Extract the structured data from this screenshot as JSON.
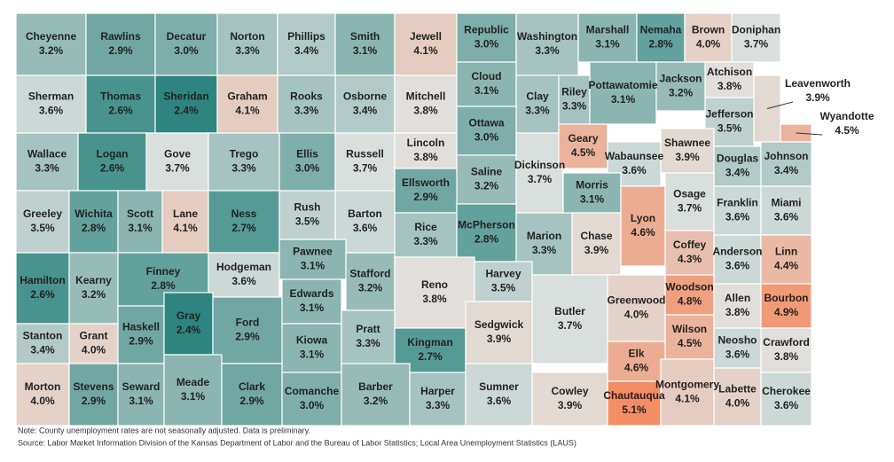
{
  "counties": [
    {
      "name": "Cheyenne",
      "value": 3.2,
      "label": "3.2%"
    },
    {
      "name": "Rawlins",
      "value": 2.9,
      "label": "2.9%"
    },
    {
      "name": "Decatur",
      "value": 3.0,
      "label": "3.0%"
    },
    {
      "name": "Norton",
      "value": 3.3,
      "label": "3.3%"
    },
    {
      "name": "Phillips",
      "value": 3.4,
      "label": "3.4%"
    },
    {
      "name": "Smith",
      "value": 3.1,
      "label": "3.1%"
    },
    {
      "name": "Jewell",
      "value": 4.1,
      "label": "4.1%"
    },
    {
      "name": "Republic",
      "value": 3.0,
      "label": "3.0%"
    },
    {
      "name": "Washington",
      "value": 3.3,
      "label": "3.3%"
    },
    {
      "name": "Marshall",
      "value": 3.1,
      "label": "3.1%"
    },
    {
      "name": "Nemaha",
      "value": 2.8,
      "label": "2.8%"
    },
    {
      "name": "Brown",
      "value": 4.0,
      "label": "4.0%"
    },
    {
      "name": "Doniphan",
      "value": 3.7,
      "label": "3.7%"
    },
    {
      "name": "Sherman",
      "value": 3.6,
      "label": "3.6%"
    },
    {
      "name": "Thomas",
      "value": 2.6,
      "label": "2.6%"
    },
    {
      "name": "Sheridan",
      "value": 2.4,
      "label": "2.4%"
    },
    {
      "name": "Graham",
      "value": 4.1,
      "label": "4.1%"
    },
    {
      "name": "Rooks",
      "value": 3.3,
      "label": "3.3%"
    },
    {
      "name": "Osborne",
      "value": 3.4,
      "label": "3.4%"
    },
    {
      "name": "Mitchell",
      "value": 3.8,
      "label": "3.8%"
    },
    {
      "name": "Cloud",
      "value": 3.1,
      "label": "3.1%"
    },
    {
      "name": "Clay",
      "value": 3.3,
      "label": "3.3%"
    },
    {
      "name": "Riley",
      "value": 3.3,
      "label": "3.3%"
    },
    {
      "name": "Pottawatomie",
      "value": 3.1,
      "label": "3.1%"
    },
    {
      "name": "Jackson",
      "value": 3.2,
      "label": "3.2%"
    },
    {
      "name": "Atchison",
      "value": 3.8,
      "label": "3.8%"
    },
    {
      "name": "Jefferson",
      "value": 3.5,
      "label": "3.5%"
    },
    {
      "name": "Leavenworth",
      "value": 3.9,
      "label": "3.9%"
    },
    {
      "name": "Wyandotte",
      "value": 4.5,
      "label": "4.5%"
    },
    {
      "name": "Wallace",
      "value": 3.3,
      "label": "3.3%"
    },
    {
      "name": "Logan",
      "value": 2.6,
      "label": "2.6%"
    },
    {
      "name": "Gove",
      "value": 3.7,
      "label": "3.7%"
    },
    {
      "name": "Trego",
      "value": 3.3,
      "label": "3.3%"
    },
    {
      "name": "Ellis",
      "value": 3.0,
      "label": "3.0%"
    },
    {
      "name": "Russell",
      "value": 3.7,
      "label": "3.7%"
    },
    {
      "name": "Lincoln",
      "value": 3.8,
      "label": "3.8%"
    },
    {
      "name": "Ottawa",
      "value": 3.0,
      "label": "3.0%"
    },
    {
      "name": "Saline",
      "value": 3.2,
      "label": "3.2%"
    },
    {
      "name": "Dickinson",
      "value": 3.7,
      "label": "3.7%"
    },
    {
      "name": "Geary",
      "value": 4.5,
      "label": "4.5%"
    },
    {
      "name": "Wabaunsee",
      "value": 3.6,
      "label": "3.6%"
    },
    {
      "name": "Shawnee",
      "value": 3.9,
      "label": "3.9%"
    },
    {
      "name": "Douglas",
      "value": 3.4,
      "label": "3.4%"
    },
    {
      "name": "Johnson",
      "value": 3.4,
      "label": "3.4%"
    },
    {
      "name": "Greeley",
      "value": 3.5,
      "label": "3.5%"
    },
    {
      "name": "Wichita",
      "value": 2.8,
      "label": "2.8%"
    },
    {
      "name": "Scott",
      "value": 3.1,
      "label": "3.1%"
    },
    {
      "name": "Lane",
      "value": 4.1,
      "label": "4.1%"
    },
    {
      "name": "Ness",
      "value": 2.7,
      "label": "2.7%"
    },
    {
      "name": "Rush",
      "value": 3.5,
      "label": "3.5%"
    },
    {
      "name": "Barton",
      "value": 3.6,
      "label": "3.6%"
    },
    {
      "name": "Ellsworth",
      "value": 2.9,
      "label": "2.9%"
    },
    {
      "name": "Rice",
      "value": 3.3,
      "label": "3.3%"
    },
    {
      "name": "McPherson",
      "value": 2.8,
      "label": "2.8%"
    },
    {
      "name": "Marion",
      "value": 3.3,
      "label": "3.3%"
    },
    {
      "name": "Morris",
      "value": 3.1,
      "label": "3.1%"
    },
    {
      "name": "Chase",
      "value": 3.9,
      "label": "3.9%"
    },
    {
      "name": "Lyon",
      "value": 4.6,
      "label": "4.6%"
    },
    {
      "name": "Osage",
      "value": 3.7,
      "label": "3.7%"
    },
    {
      "name": "Franklin",
      "value": 3.6,
      "label": "3.6%"
    },
    {
      "name": "Miami",
      "value": 3.6,
      "label": "3.6%"
    },
    {
      "name": "Hamilton",
      "value": 2.6,
      "label": "2.6%"
    },
    {
      "name": "Kearny",
      "value": 3.2,
      "label": "3.2%"
    },
    {
      "name": "Finney",
      "value": 2.8,
      "label": "2.8%"
    },
    {
      "name": "Hodgeman",
      "value": 3.6,
      "label": "3.6%"
    },
    {
      "name": "Pawnee",
      "value": 3.1,
      "label": "3.1%"
    },
    {
      "name": "Stafford",
      "value": 3.2,
      "label": "3.2%"
    },
    {
      "name": "Reno",
      "value": 3.8,
      "label": "3.8%"
    },
    {
      "name": "Harvey",
      "value": 3.5,
      "label": "3.5%"
    },
    {
      "name": "Butler",
      "value": 3.7,
      "label": "3.7%"
    },
    {
      "name": "Coffey",
      "value": 4.3,
      "label": "4.3%"
    },
    {
      "name": "Anderson",
      "value": 3.6,
      "label": "3.6%"
    },
    {
      "name": "Linn",
      "value": 4.4,
      "label": "4.4%"
    },
    {
      "name": "Stanton",
      "value": 3.4,
      "label": "3.4%"
    },
    {
      "name": "Grant",
      "value": 4.0,
      "label": "4.0%"
    },
    {
      "name": "Haskell",
      "value": 2.9,
      "label": "2.9%"
    },
    {
      "name": "Gray",
      "value": 2.4,
      "label": "2.4%"
    },
    {
      "name": "Ford",
      "value": 2.9,
      "label": "2.9%"
    },
    {
      "name": "Edwards",
      "value": 3.1,
      "label": "3.1%"
    },
    {
      "name": "Kiowa",
      "value": 3.1,
      "label": "3.1%"
    },
    {
      "name": "Pratt",
      "value": 3.3,
      "label": "3.3%"
    },
    {
      "name": "Kingman",
      "value": 2.7,
      "label": "2.7%"
    },
    {
      "name": "Sedgwick",
      "value": 3.9,
      "label": "3.9%"
    },
    {
      "name": "Greenwood",
      "value": 4.0,
      "label": "4.0%"
    },
    {
      "name": "Woodson",
      "value": 4.8,
      "label": "4.8%"
    },
    {
      "name": "Allen",
      "value": 3.8,
      "label": "3.8%"
    },
    {
      "name": "Bourbon",
      "value": 4.9,
      "label": "4.9%"
    },
    {
      "name": "Wilson",
      "value": 4.5,
      "label": "4.5%"
    },
    {
      "name": "Neosho",
      "value": 3.6,
      "label": "3.6%"
    },
    {
      "name": "Crawford",
      "value": 3.8,
      "label": "3.8%"
    },
    {
      "name": "Elk",
      "value": 4.6,
      "label": "4.6%"
    },
    {
      "name": "Morton",
      "value": 4.0,
      "label": "4.0%"
    },
    {
      "name": "Stevens",
      "value": 2.9,
      "label": "2.9%"
    },
    {
      "name": "Seward",
      "value": 3.1,
      "label": "3.1%"
    },
    {
      "name": "Meade",
      "value": 3.1,
      "label": "3.1%"
    },
    {
      "name": "Clark",
      "value": 2.9,
      "label": "2.9%"
    },
    {
      "name": "Comanche",
      "value": 3.0,
      "label": "3.0%"
    },
    {
      "name": "Barber",
      "value": 3.2,
      "label": "3.2%"
    },
    {
      "name": "Harper",
      "value": 3.3,
      "label": "3.3%"
    },
    {
      "name": "Sumner",
      "value": 3.6,
      "label": "3.6%"
    },
    {
      "name": "Cowley",
      "value": 3.9,
      "label": "3.9%"
    },
    {
      "name": "Chautauqua",
      "value": 5.1,
      "label": "5.1%"
    },
    {
      "name": "Montgomery",
      "value": 4.1,
      "label": "4.1%"
    },
    {
      "name": "Labette",
      "value": 4.0,
      "label": "4.0%"
    },
    {
      "name": "Cherokee",
      "value": 3.6,
      "label": "3.6%"
    }
  ],
  "colors": [
    "#2e857f",
    "#e0e2e0",
    "#f38d63"
  ],
  "note": "Note: County unemployment rates are not seasonally adjusted. Data is preliminary.",
  "source": "Source: Labor Market Information Division of the Kansas Department of Labor and the Bureau of Labor Statistics; Local Area Unemployment Statistics (LAUS)"
}
